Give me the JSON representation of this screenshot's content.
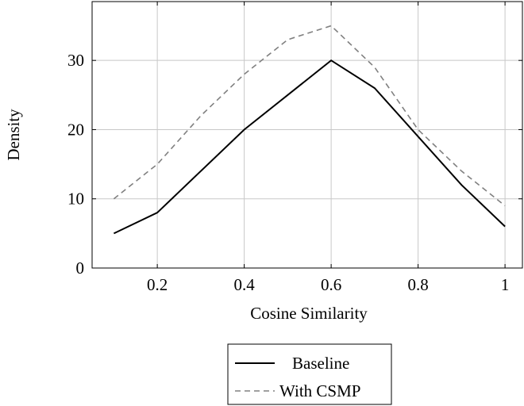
{
  "chart_data": {
    "type": "line",
    "xlabel": "Cosine Similarity",
    "ylabel": "Density",
    "xlim": [
      0.05,
      1.04
    ],
    "ylim": [
      0,
      38.5
    ],
    "xticks": [
      0.2,
      0.4,
      0.6,
      0.8,
      1
    ],
    "xtick_labels": [
      "0.2",
      "0.4",
      "0.6",
      "0.8",
      "1"
    ],
    "yticks": [
      0,
      10,
      20,
      30
    ],
    "ytick_labels": [
      "0",
      "10",
      "20",
      "30"
    ],
    "grid": true,
    "legend_position": "bottom-center (below chart)",
    "series": [
      {
        "name": "Baseline",
        "style": "solid",
        "color": "#000000",
        "x": [
          0.1,
          0.2,
          0.4,
          0.5,
          0.6,
          0.7,
          0.8,
          0.9,
          1.0
        ],
        "y": [
          5,
          8,
          20,
          25,
          30,
          26,
          19,
          12,
          6
        ]
      },
      {
        "name": "With CSMP",
        "style": "dashed",
        "color": "#808080",
        "x": [
          0.1,
          0.2,
          0.3,
          0.4,
          0.5,
          0.6,
          0.7,
          0.8,
          0.9,
          1.0
        ],
        "y": [
          10,
          15,
          22,
          28,
          33,
          35,
          29,
          20,
          14,
          9
        ]
      }
    ]
  }
}
